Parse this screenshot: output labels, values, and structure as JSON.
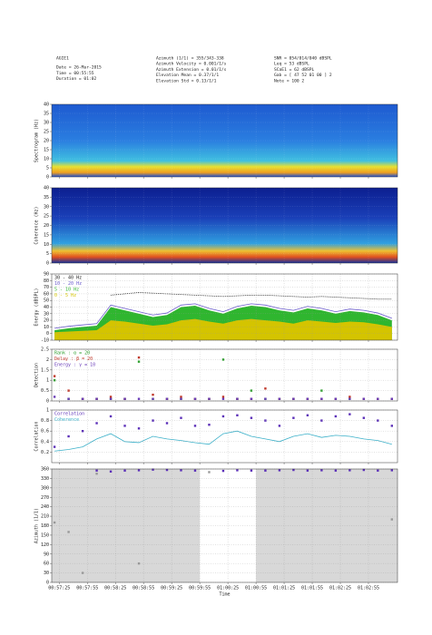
{
  "header": {
    "left": [
      "AGIE1",
      "Date = 26-Mar-2015",
      "Time = 00:55:55",
      "Duration = 01:02"
    ],
    "middle": [
      "Azimuth (1/1) = 355/343-338",
      "Azimuth Velocity = 0.001/1/s",
      "Azimuth Extension = 0.01/1/s",
      "Elevation Mean = 0.37/1/1",
      "Elevation Std = 0.13/1/1"
    ],
    "right": [
      "SNR = 054/014/040 dBSPL",
      "Leq = 53 dBSPL",
      "SCaE1 = 62 dBSPL",
      "Gab = [ 47 52 01 00 ] 2",
      "Note = 100 2"
    ]
  },
  "time_axis": {
    "xlabel": "Time",
    "xlim": [
      "00:57:17",
      "01:03:26"
    ],
    "xticks": [
      "00:57:25",
      "00:57:55",
      "00:58:25",
      "00:58:55",
      "00:59:25",
      "00:59:55",
      "01:00:25",
      "01:00:55",
      "01:01:25",
      "01:01:55",
      "01:02:25",
      "01:02:55"
    ],
    "x": [
      "00:57:20",
      "00:57:35",
      "00:57:50",
      "00:58:05",
      "00:58:20",
      "00:58:35",
      "00:58:50",
      "00:59:05",
      "00:59:20",
      "00:59:35",
      "00:59:50",
      "01:00:05",
      "01:00:20",
      "01:00:35",
      "01:00:50",
      "01:01:05",
      "01:01:20",
      "01:01:35",
      "01:01:50",
      "01:02:05",
      "01:02:20",
      "01:02:35",
      "01:02:50",
      "01:03:05",
      "01:03:20"
    ]
  },
  "chart_data": [
    {
      "type": "heatmap",
      "ylabel": "Spectrogram (Hz)",
      "ylim": [
        0,
        40
      ],
      "yticks": [
        0,
        5,
        10,
        15,
        20,
        25,
        30,
        35,
        40
      ],
      "grid": true
    },
    {
      "type": "heatmap",
      "ylabel": "Coherence (Hz)",
      "ylim": [
        0,
        40
      ],
      "yticks": [
        0,
        5,
        10,
        15,
        20,
        25,
        30,
        35,
        40
      ],
      "grid": true
    },
    {
      "type": "area",
      "ylabel": "Energy (dBSPL)",
      "ylim": [
        -10,
        90
      ],
      "yticks": [
        -10,
        0,
        10,
        20,
        30,
        40,
        50,
        60,
        70,
        80,
        90
      ],
      "grid": true,
      "series": [
        {
          "name": "30 - 40 Hz",
          "color": "#222222",
          "style": "line",
          "values": [
            null,
            null,
            null,
            null,
            58,
            60,
            62,
            61,
            60,
            59,
            58,
            57,
            56,
            57,
            58,
            58,
            57,
            56,
            55,
            56,
            55,
            54,
            53,
            52,
            52
          ]
        },
        {
          "name": "10 - 20 Hz",
          "color": "#6a5acd",
          "style": "line",
          "values": [
            8,
            11,
            13,
            15,
            43,
            38,
            33,
            28,
            31,
            43,
            45,
            38,
            33,
            41,
            45,
            43,
            38,
            35,
            41,
            38,
            33,
            37,
            35,
            31,
            23
          ]
        },
        {
          "name": "5 - 10 Hz",
          "color": "#2fb62f",
          "style": "area",
          "values": [
            5,
            8,
            10,
            12,
            40,
            35,
            30,
            25,
            28,
            40,
            42,
            35,
            30,
            38,
            42,
            40,
            35,
            32,
            38,
            35,
            30,
            34,
            32,
            28,
            20
          ]
        },
        {
          "name": "0 - 5 Hz",
          "color": "#d4c400",
          "style": "area",
          "values": [
            2,
            3,
            4,
            5,
            20,
            18,
            15,
            12,
            14,
            20,
            22,
            18,
            15,
            20,
            22,
            20,
            18,
            15,
            20,
            18,
            16,
            18,
            17,
            14,
            10
          ]
        }
      ]
    },
    {
      "type": "scatter",
      "ylabel": "Detection",
      "ylim": [
        0,
        2.5
      ],
      "yticks": [
        0,
        0.5,
        1,
        1.5,
        2,
        2.5
      ],
      "grid": true,
      "series": [
        {
          "name": "Rank : α = 20",
          "color": "#2fa02f",
          "style": "dots",
          "values": [
            1.0,
            0.1,
            0.1,
            0.1,
            0.1,
            0.1,
            1.9,
            0.1,
            0.1,
            0.1,
            0.1,
            0.1,
            2.0,
            0.1,
            0.5,
            0.1,
            0.1,
            0.1,
            0.1,
            0.5,
            0.1,
            0.1,
            0.1,
            0.1,
            0.1
          ]
        },
        {
          "name": "Delay : β = 20",
          "color": "#c0392b",
          "style": "dots",
          "values": [
            1.2,
            0.5,
            0.1,
            0.1,
            0.2,
            0.1,
            2.1,
            0.3,
            0.1,
            0.2,
            0.1,
            0.1,
            0.2,
            0.1,
            0.1,
            0.6,
            0.1,
            0.1,
            0.1,
            0.1,
            0.1,
            0.2,
            0.1,
            0.1,
            0.1
          ]
        },
        {
          "name": "Energy : γ = 10",
          "color": "#6a3db8",
          "style": "dots",
          "values": [
            0.2,
            0.1,
            0.1,
            0.1,
            0.1,
            0.1,
            0.1,
            0.1,
            0.1,
            0.1,
            0.1,
            0.1,
            0.1,
            0.1,
            0.1,
            0.1,
            0.1,
            0.1,
            0.1,
            0.1,
            0.1,
            0.1,
            0.1,
            0.1,
            0.1
          ]
        }
      ]
    },
    {
      "type": "scatter",
      "ylabel": "Correlation",
      "ylim": [
        0,
        1
      ],
      "yticks": [
        0.2,
        0.4,
        0.6,
        0.8,
        1
      ],
      "grid": true,
      "series": [
        {
          "name": "Correlation",
          "color": "#5b2fb8",
          "style": "dots",
          "values": [
            0.3,
            0.5,
            0.6,
            0.75,
            0.88,
            0.7,
            0.65,
            0.8,
            0.75,
            0.85,
            0.7,
            0.72,
            0.88,
            0.9,
            0.85,
            0.8,
            0.7,
            0.85,
            0.9,
            0.8,
            0.88,
            0.92,
            0.85,
            0.8,
            0.7
          ]
        },
        {
          "name": "Coherence",
          "color": "#3bb0c9",
          "style": "line",
          "values": [
            0.22,
            0.25,
            0.3,
            0.45,
            0.55,
            0.4,
            0.38,
            0.5,
            0.45,
            0.42,
            0.38,
            0.35,
            0.55,
            0.6,
            0.5,
            0.45,
            0.4,
            0.5,
            0.55,
            0.48,
            0.52,
            0.5,
            0.45,
            0.42,
            0.35
          ]
        }
      ]
    },
    {
      "type": "scatter",
      "ylabel": "Azimuth (1/1)",
      "ylim": [
        0,
        360
      ],
      "yticks": [
        0,
        30,
        60,
        90,
        120,
        150,
        180,
        210,
        240,
        270,
        300,
        330,
        360
      ],
      "grid": true,
      "background": "#d8d8d8",
      "clear_band": [
        "00:59:55",
        "01:00:55"
      ],
      "series": [
        {
          "color": "#5b2fb8",
          "style": "dots",
          "values": [
            null,
            null,
            null,
            355,
            352,
            355,
            356,
            358,
            357,
            356,
            355,
            null,
            354,
            356,
            355,
            355,
            356,
            357,
            355,
            356,
            355,
            356,
            357,
            355,
            356
          ]
        },
        {
          "color": "#999999",
          "style": "dots",
          "values": [
            190,
            160,
            30,
            345,
            null,
            null,
            60,
            null,
            null,
            null,
            null,
            350,
            null,
            null,
            null,
            null,
            null,
            null,
            null,
            null,
            null,
            null,
            null,
            null,
            200
          ]
        }
      ]
    }
  ]
}
